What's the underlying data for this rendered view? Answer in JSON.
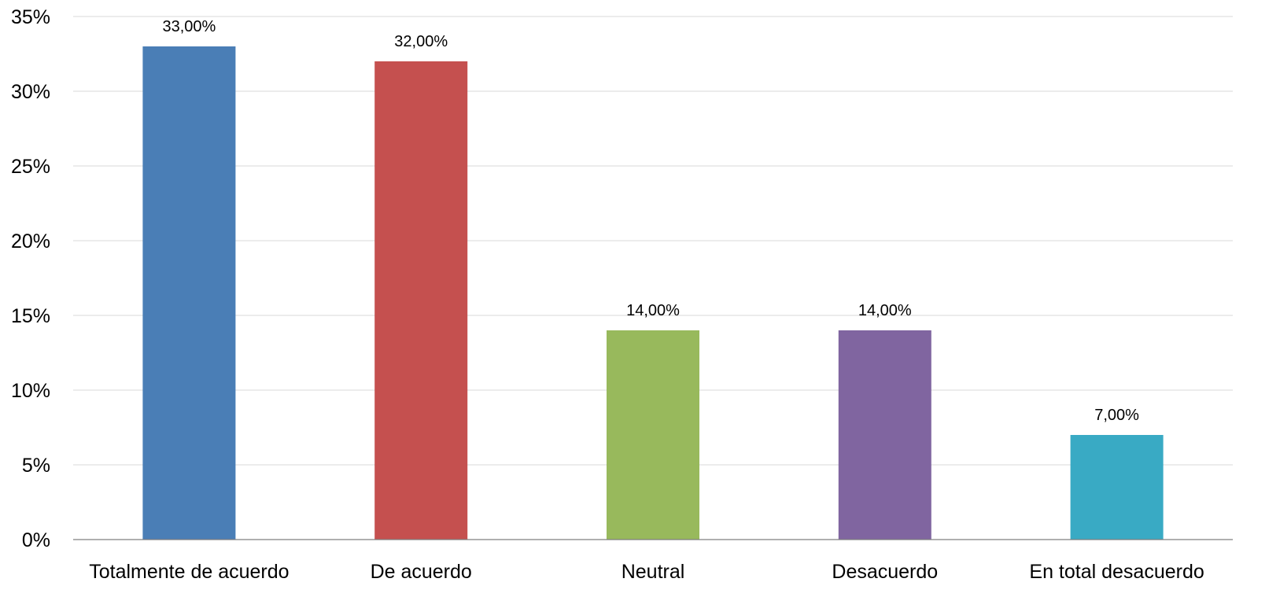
{
  "chart_data": {
    "type": "bar",
    "categories": [
      "Totalmente de acuerdo",
      "De acuerdo",
      "Neutral",
      "Desacuerdo",
      "En total desacuerdo"
    ],
    "values": [
      33,
      32,
      14,
      14,
      7
    ],
    "data_labels": [
      "33,00%",
      "32,00%",
      "14,00%",
      "14,00%",
      "7,00%"
    ],
    "colors": [
      "#4a7eb6",
      "#c5504f",
      "#98b95c",
      "#8065a0",
      "#39aac4"
    ],
    "y_ticks": [
      0,
      5,
      10,
      15,
      20,
      25,
      30,
      35
    ],
    "y_tick_labels": [
      "0%",
      "5%",
      "10%",
      "15%",
      "20%",
      "25%",
      "30%",
      "35%"
    ],
    "ylim": [
      0,
      35
    ],
    "grid": true,
    "legend": "none",
    "title": "",
    "xlabel": "",
    "ylabel": ""
  }
}
